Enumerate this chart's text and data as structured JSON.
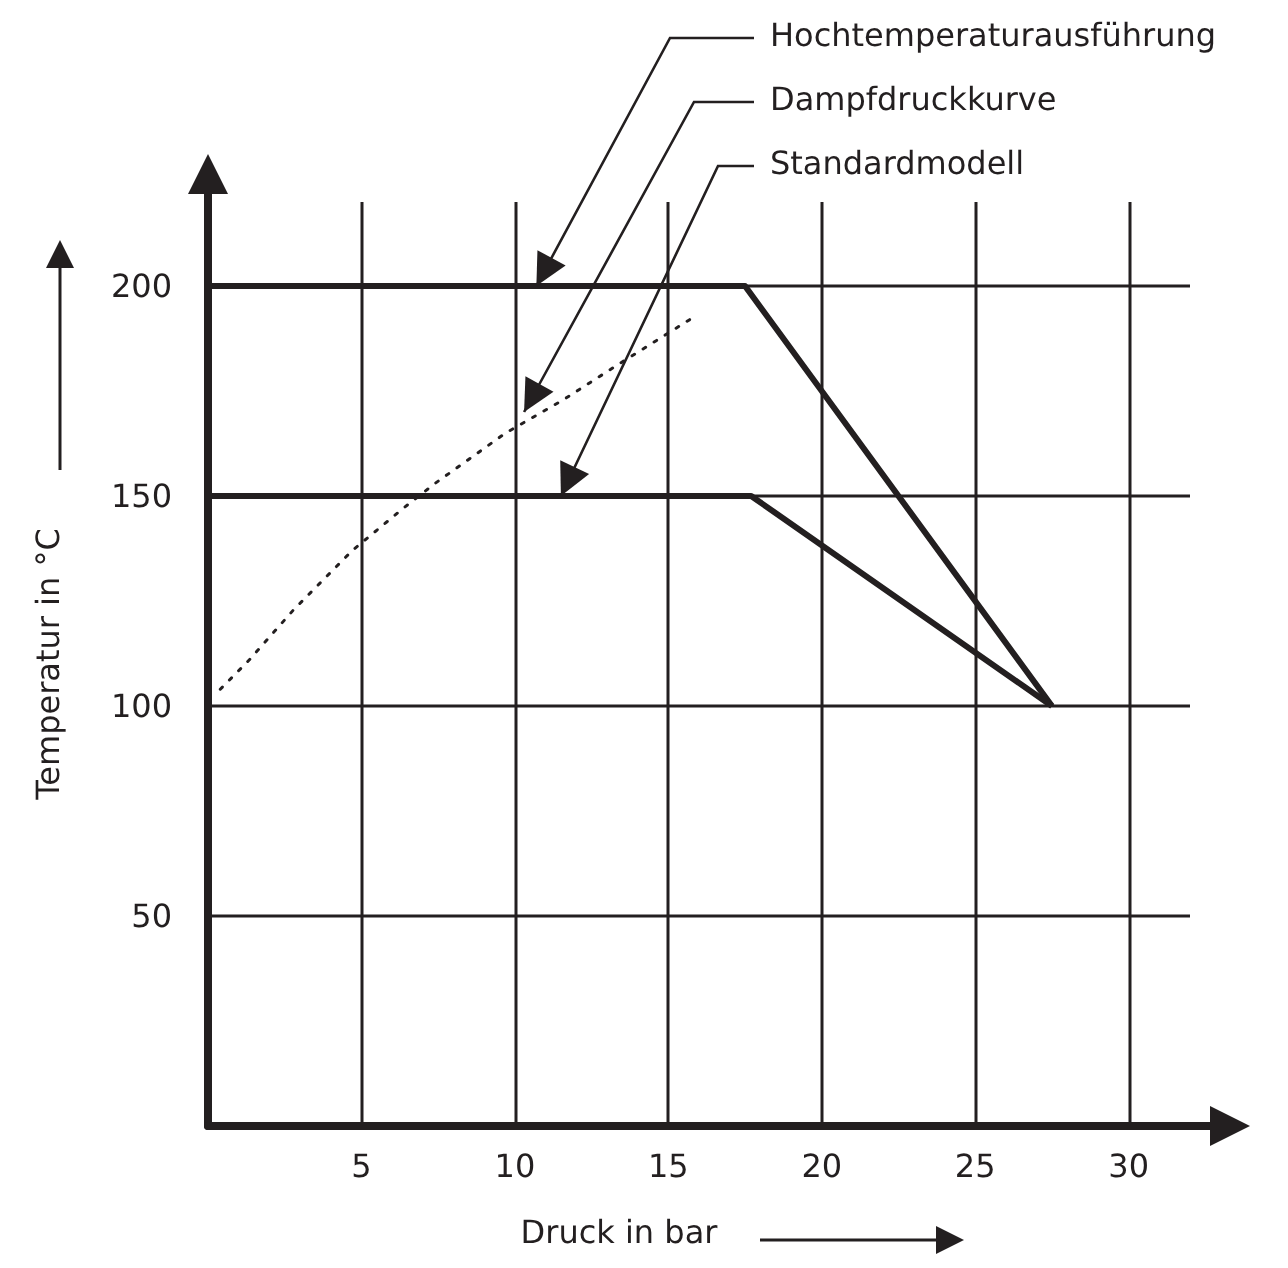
{
  "chart_data": {
    "type": "line",
    "xlabel": "Druck in bar",
    "ylabel": "Temperatur in °C",
    "xlim": [
      0,
      32
    ],
    "ylim": [
      0,
      220
    ],
    "xticks": [
      5,
      10,
      15,
      20,
      25,
      30
    ],
    "yticks": [
      50,
      100,
      150,
      200
    ],
    "grid": true,
    "marker": "none",
    "series": [
      {
        "color": "#231f20",
        "x": [
          0,
          17.5,
          27.5
        ],
        "values": [
          200,
          200,
          100
        ],
        "line_style": "solid"
      },
      {
        "color": "#231f20",
        "x": [
          0,
          17.7,
          27.5
        ],
        "values": [
          150,
          150,
          100
        ],
        "line_style": "solid"
      },
      {
        "color": "#231f20",
        "x": [
          0.4,
          1.35,
          2.8,
          3.75,
          4.7,
          6.35,
          7.4,
          9.7,
          11.6,
          13.3,
          15.7
        ],
        "values": [
          104,
          111,
          123,
          130,
          137,
          147,
          153,
          165,
          173,
          181,
          192
        ],
        "line_style": "dotted"
      }
    ],
    "annotations": [
      {
        "text": "Hochtemperaturausführung",
        "x": 10.7,
        "y": 200
      },
      {
        "text": "Dampfdruckkurve",
        "x": 10.3,
        "y": 170
      },
      {
        "text": "Standardmodell",
        "x": 11.5,
        "y": 150
      }
    ]
  }
}
